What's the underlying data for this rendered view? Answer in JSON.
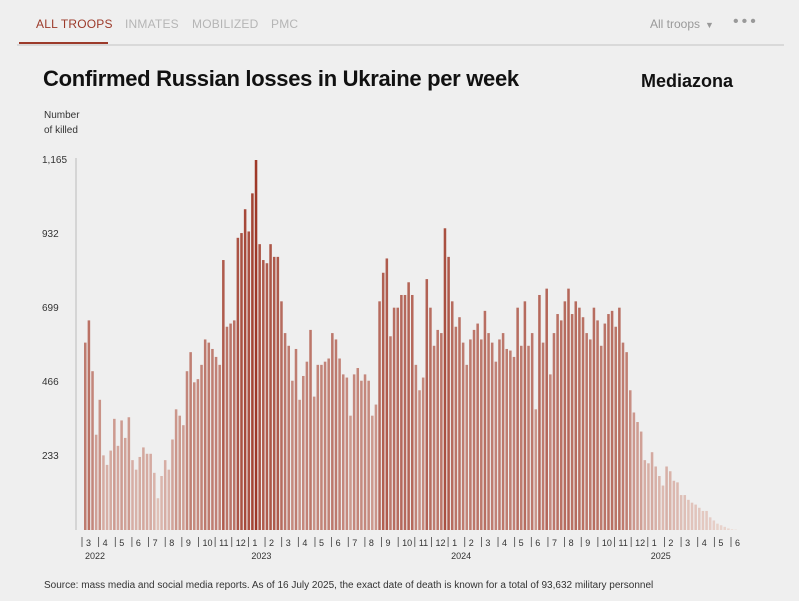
{
  "tabs": {
    "items": [
      {
        "label": "ALL TROOPS",
        "active": true
      },
      {
        "label": "INMATES",
        "active": false
      },
      {
        "label": "MOBILIZED",
        "active": false
      },
      {
        "label": "PMC",
        "active": false
      }
    ],
    "filter_label": "All troops",
    "more_icon": "more-dots-icon"
  },
  "header": {
    "title": "Confirmed Russian losses in Ukraine per week",
    "brand": "Mediazona"
  },
  "source_note": "Source: mass media and social media reports. As of 16 July 2025, the exact date of death is known for a total of 93,632 military personnel",
  "colors": {
    "accent": "#9c3a2a",
    "bar_dark": "#9e3828",
    "bar_light": "#ead7d0",
    "background": "#efefef"
  },
  "chart_data": {
    "type": "bar",
    "title": "Confirmed Russian losses in Ukraine per week",
    "xlabel": "",
    "ylabel": "Number of killed",
    "ylabel_lines": [
      "Number",
      "of killed"
    ],
    "yticks": [
      233,
      466,
      699,
      932,
      1165
    ],
    "ylim": [
      0,
      1165
    ],
    "grid": false,
    "month_ticks": [
      "3",
      "4",
      "5",
      "6",
      "7",
      "8",
      "9",
      "10",
      "11",
      "12",
      "1",
      "2",
      "3",
      "4",
      "5",
      "6",
      "7",
      "8",
      "9",
      "10",
      "11",
      "12",
      "1",
      "2",
      "3",
      "4",
      "5",
      "6",
      "7",
      "8",
      "9",
      "10",
      "11",
      "12",
      "1",
      "2",
      "3",
      "4",
      "5",
      "6"
    ],
    "year_ticks": [
      "2022",
      "2023",
      "2024",
      "2025"
    ],
    "series": [
      {
        "values": [
          590,
          660,
          500,
          300,
          410,
          235,
          205,
          250,
          350,
          265,
          345,
          290,
          355,
          220,
          190,
          230,
          260,
          240,
          240,
          180,
          100,
          170,
          220,
          190,
          285,
          380,
          360,
          330,
          500,
          560,
          465,
          475,
          520,
          600,
          590,
          570,
          545,
          520,
          850,
          640,
          650,
          660,
          920,
          935,
          1010,
          940,
          1060,
          1165,
          900,
          850,
          840,
          900,
          860,
          860,
          720,
          620,
          580,
          470,
          570,
          410,
          485,
          530,
          630,
          420,
          520,
          520,
          530,
          540,
          620,
          600,
          540,
          490,
          480,
          360,
          490,
          510,
          470,
          490,
          470,
          360,
          395,
          720,
          810,
          855,
          610,
          700,
          700,
          740,
          740,
          780,
          740,
          520,
          440,
          480,
          790,
          700,
          580,
          630,
          620,
          950,
          860,
          720,
          640,
          670,
          590,
          520,
          600,
          630,
          650,
          600,
          690,
          620,
          590,
          530,
          600,
          620,
          570,
          565,
          545,
          700,
          580,
          720,
          580,
          620,
          380,
          740,
          590,
          760,
          490,
          620,
          680,
          660,
          720,
          760,
          680,
          720,
          700,
          670,
          620,
          600,
          700,
          660,
          580,
          650,
          680,
          690,
          640,
          700,
          590,
          560,
          440,
          370,
          340,
          310,
          220,
          210,
          245,
          200,
          170,
          140,
          200,
          185,
          155,
          150,
          110,
          110,
          95,
          86,
          80,
          70,
          60,
          60,
          40,
          30,
          20,
          15,
          10,
          5,
          2,
          1
        ]
      }
    ]
  }
}
